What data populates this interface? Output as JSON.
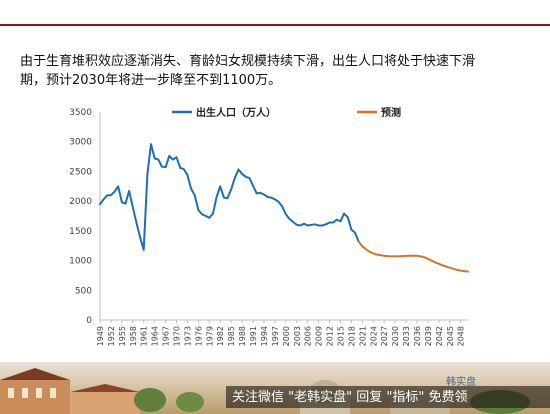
{
  "intro": {
    "line1": "由于生育堆积效应逐渐消失、育龄妇女规模持续下滑，出生人口将处于快速下滑",
    "line2": "期，预计2030年将进一步降至不到1100万。"
  },
  "colors": {
    "actual": "#1f6fb2",
    "forecast": "#d4742a",
    "axis": "#bfbfbf",
    "text": "#333333"
  },
  "chart_data": {
    "type": "line",
    "title": "",
    "xlabel": "",
    "ylabel": "",
    "ylim": [
      0,
      3500
    ],
    "yticks": [
      0,
      500,
      1000,
      1500,
      2000,
      2500,
      3000,
      3500
    ],
    "xticks": [
      "1949",
      "1952",
      "1955",
      "1958",
      "1961",
      "1964",
      "1967",
      "1970",
      "1973",
      "1976",
      "1979",
      "1982",
      "1985",
      "1988",
      "1991",
      "1994",
      "1997",
      "2000",
      "2003",
      "2006",
      "2009",
      "2012",
      "2015",
      "2018",
      "2021",
      "2024",
      "2027",
      "2030",
      "2033",
      "2036",
      "2039",
      "2042",
      "2045",
      "2048"
    ],
    "grid": false,
    "legend": "top",
    "series": [
      {
        "name": "出生人口（万人）",
        "x": [
          1949,
          1950,
          1951,
          1952,
          1953,
          1954,
          1955,
          1956,
          1957,
          1958,
          1959,
          1960,
          1961,
          1962,
          1963,
          1964,
          1965,
          1966,
          1967,
          1968,
          1969,
          1970,
          1971,
          1972,
          1973,
          1974,
          1975,
          1976,
          1977,
          1978,
          1979,
          1980,
          1981,
          1982,
          1983,
          1984,
          1985,
          1986,
          1987,
          1988,
          1989,
          1990,
          1991,
          1992,
          1993,
          1994,
          1995,
          1996,
          1997,
          1998,
          1999,
          2000,
          2001,
          2002,
          2003,
          2004,
          2005,
          2006,
          2007,
          2008,
          2009,
          2010,
          2011,
          2012,
          2013,
          2014,
          2015,
          2016,
          2017,
          2018,
          2019,
          2020
        ],
        "values": [
          1950,
          2030,
          2100,
          2100,
          2160,
          2250,
          1980,
          1960,
          2170,
          1900,
          1640,
          1390,
          1180,
          2460,
          2960,
          2720,
          2700,
          2580,
          2570,
          2760,
          2700,
          2740,
          2560,
          2540,
          2440,
          2210,
          2100,
          1850,
          1780,
          1750,
          1720,
          1790,
          2070,
          2250,
          2060,
          2050,
          2200,
          2390,
          2530,
          2460,
          2410,
          2390,
          2260,
          2130,
          2140,
          2110,
          2070,
          2060,
          2030,
          1990,
          1910,
          1780,
          1700,
          1650,
          1600,
          1590,
          1620,
          1590,
          1600,
          1610,
          1590,
          1590,
          1610,
          1640,
          1640,
          1690,
          1660,
          1790,
          1730,
          1520,
          1470,
          1320
        ]
      },
      {
        "name": "预测",
        "x": [
          2020,
          2021,
          2022,
          2023,
          2024,
          2025,
          2026,
          2027,
          2028,
          2029,
          2030,
          2031,
          2032,
          2033,
          2034,
          2035,
          2036,
          2037,
          2038,
          2039,
          2040,
          2041,
          2042,
          2043,
          2044,
          2045,
          2046,
          2047,
          2048,
          2049,
          2050
        ],
        "values": [
          1320,
          1240,
          1190,
          1150,
          1120,
          1100,
          1090,
          1080,
          1075,
          1070,
          1070,
          1072,
          1075,
          1078,
          1080,
          1082,
          1080,
          1070,
          1055,
          1030,
          1000,
          970,
          945,
          920,
          900,
          880,
          862,
          845,
          832,
          822,
          815
        ]
      }
    ]
  },
  "footer": {
    "caption": "关注微信 \"老韩实盘\" 回复 \"指标\" 免费领",
    "watermark": "韩实盘"
  }
}
